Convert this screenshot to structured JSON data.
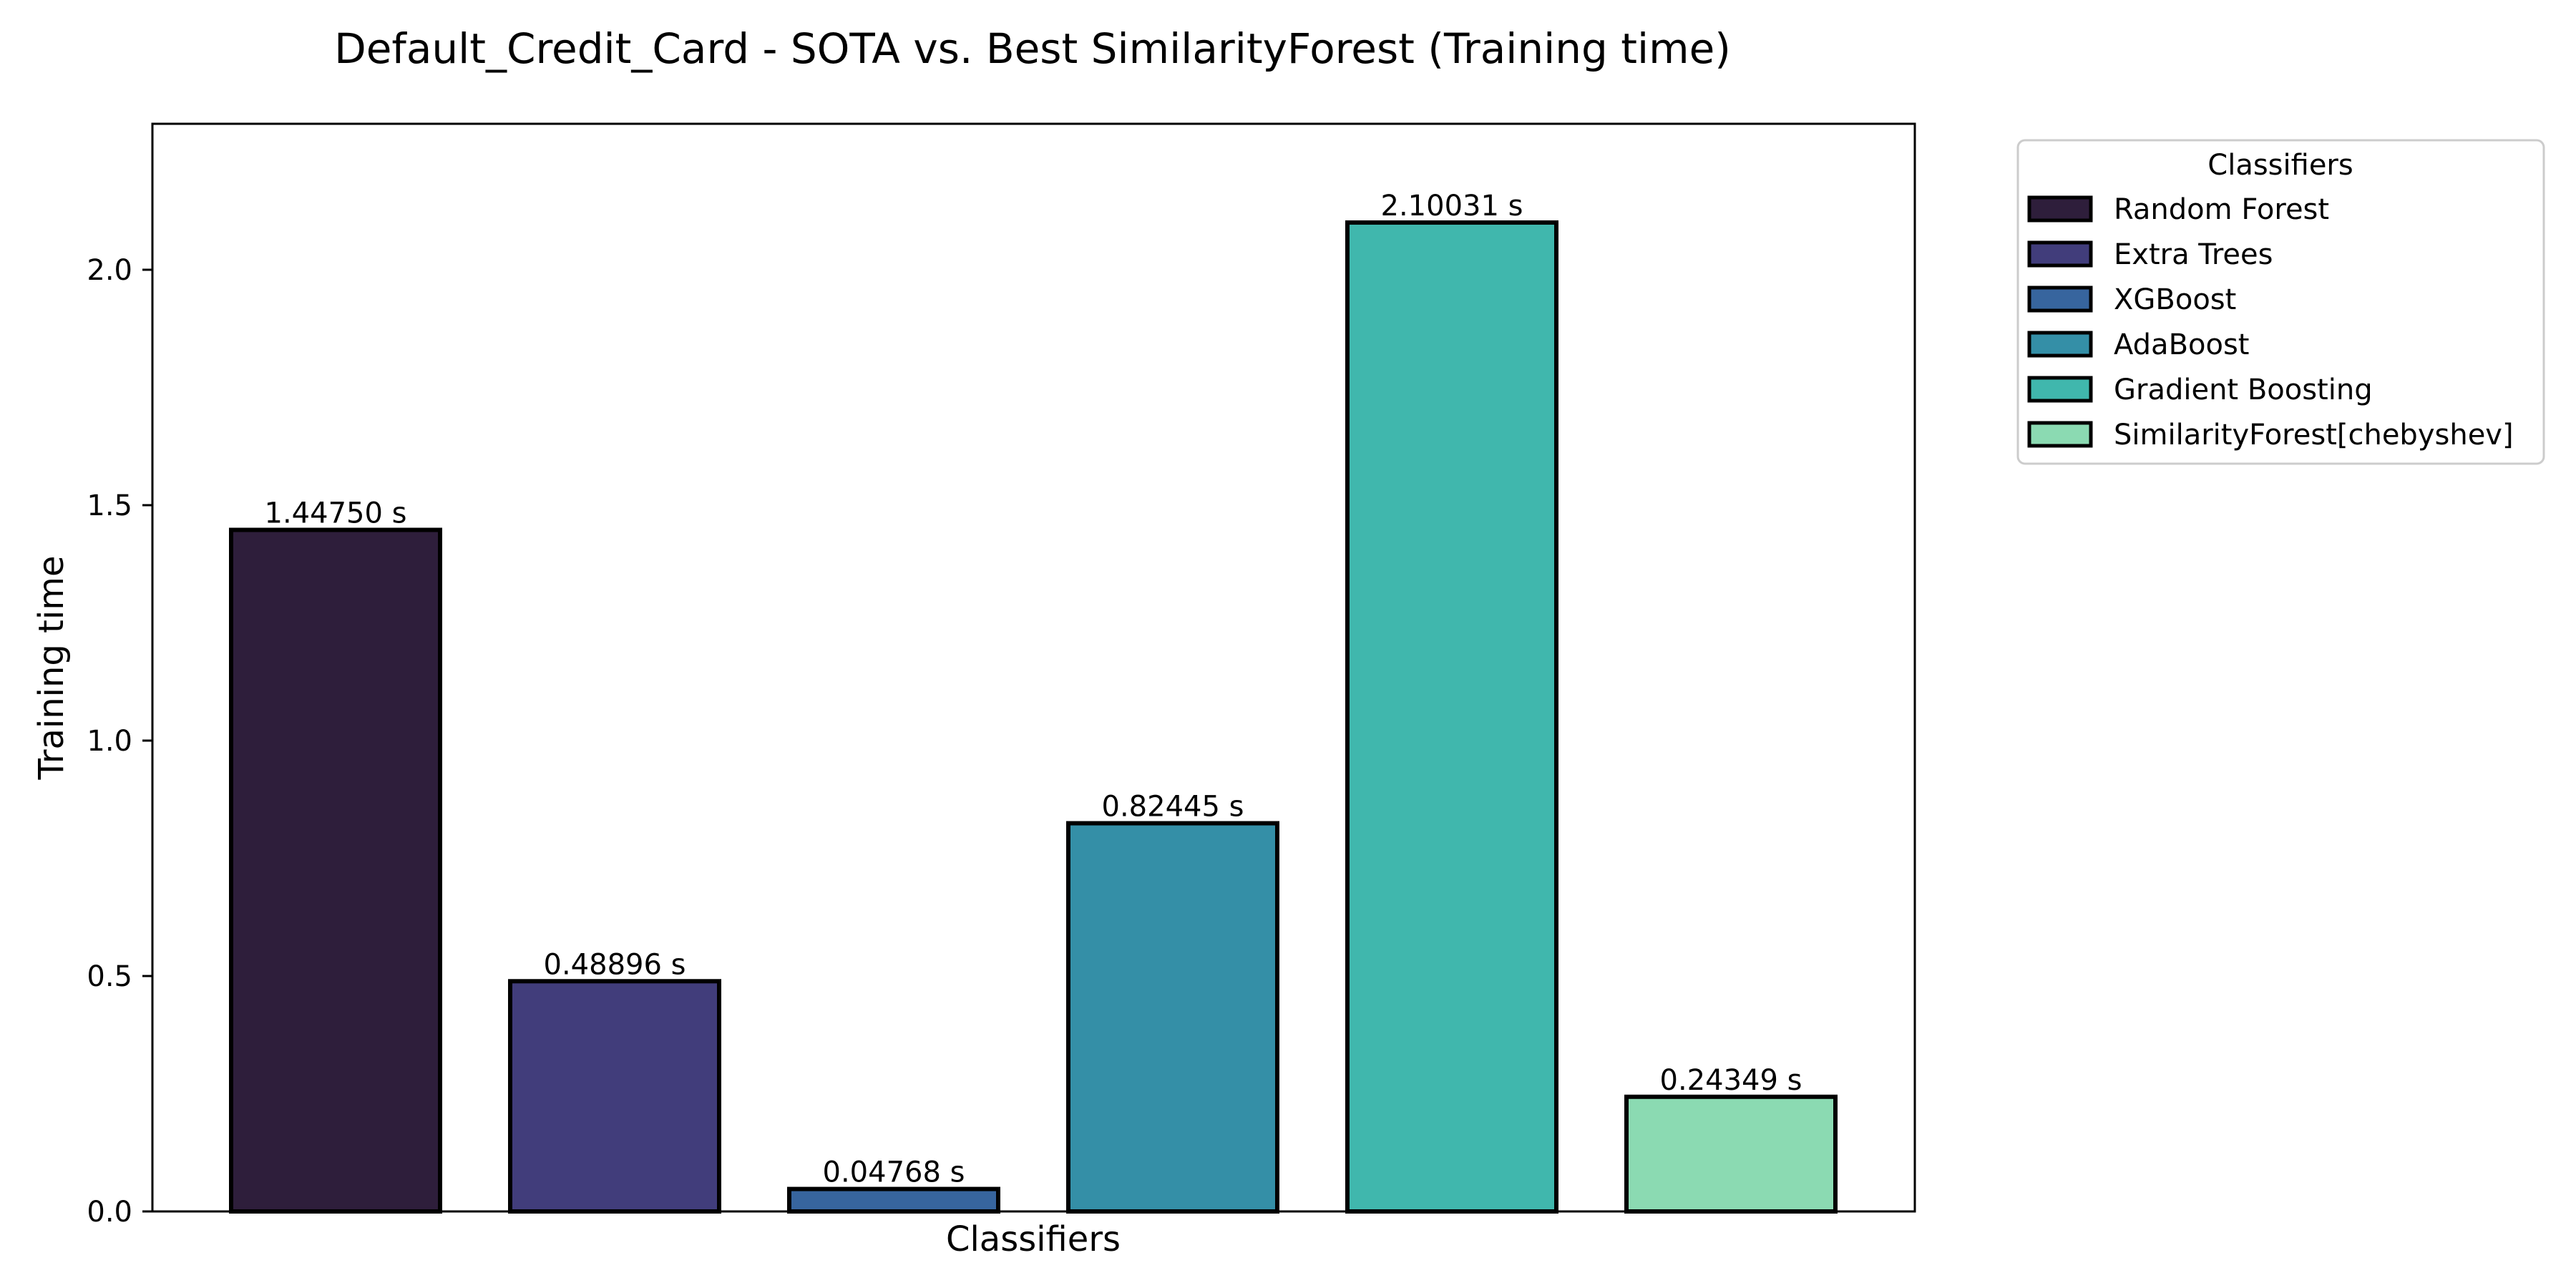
{
  "chart_data": {
    "type": "bar",
    "title": "Default_Credit_Card - SOTA vs. Best SimilarityForest (Training time)",
    "xlabel": "Classifiers",
    "ylabel": "Training time",
    "ylim": [
      0,
      2.31
    ],
    "yticks": [
      0.0,
      0.5,
      1.0,
      1.5,
      2.0
    ],
    "ytick_labels": [
      "0.0",
      "0.5",
      "1.0",
      "1.5",
      "2.0"
    ],
    "categories": [
      "Random Forest",
      "Extra Trees",
      "XGBoost",
      "AdaBoost",
      "Gradient Boosting",
      "SimilarityForest[chebyshev]"
    ],
    "values": [
      1.4475,
      0.48896,
      0.04768,
      0.82445,
      2.10031,
      0.24349
    ],
    "value_labels": [
      "1.44750 s",
      "0.48896 s",
      "0.04768 s",
      "0.82445 s",
      "2.10031 s",
      "0.24349 s"
    ],
    "colors": [
      "#2e1e3b",
      "#413d7b",
      "#37659e",
      "#348fa7",
      "#40b7ad",
      "#8bdab2"
    ],
    "grid": false,
    "legend": {
      "title": "Classifiers",
      "placement": "outside-right-top"
    }
  }
}
